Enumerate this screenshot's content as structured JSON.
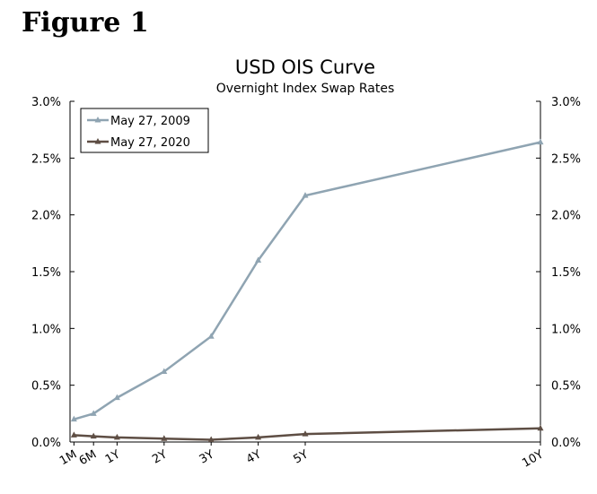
{
  "figure_label": "Figure 1",
  "chart_data": {
    "type": "line",
    "title": "USD OIS Curve",
    "subtitle": "Overnight Index Swap Rates",
    "xlabel": "",
    "ylabel": "",
    "x_tenor_years": [
      0.0833,
      0.5,
      1,
      2,
      3,
      4,
      5,
      10
    ],
    "categories": [
      "1M",
      "6M",
      "1Y",
      "2Y",
      "3Y",
      "4Y",
      "5Y",
      "10Y"
    ],
    "ylim": [
      0,
      3.0
    ],
    "y_ticks": [
      "0.0%",
      "0.5%",
      "1.0%",
      "1.5%",
      "2.0%",
      "2.5%",
      "3.0%"
    ],
    "legend_position": "top-left",
    "grid": false,
    "series": [
      {
        "name": "May 27, 2009",
        "color": "#8fa4b2",
        "values": [
          0.2,
          0.25,
          0.39,
          0.62,
          0.93,
          1.6,
          2.17,
          2.64
        ]
      },
      {
        "name": "May 27, 2020",
        "color": "#5e4e44",
        "values": [
          0.06,
          0.05,
          0.04,
          0.03,
          0.02,
          0.04,
          0.07,
          0.12
        ]
      }
    ]
  }
}
